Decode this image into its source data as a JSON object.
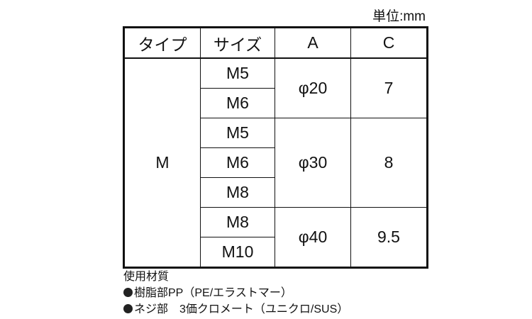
{
  "unit_label": "単位:mm",
  "table": {
    "headers": [
      "タイプ",
      "サイズ",
      "A",
      "C"
    ],
    "type": "M",
    "groups": [
      {
        "A": "φ20",
        "C": "7",
        "sizes": [
          "M5",
          "M6"
        ]
      },
      {
        "A": "φ30",
        "C": "8",
        "sizes": [
          "M5",
          "M6",
          "M8"
        ]
      },
      {
        "A": "φ40",
        "C": "9.5",
        "sizes": [
          "M8",
          "M10"
        ]
      }
    ]
  },
  "notes": {
    "title": "使用材質",
    "items": [
      "樹脂部PP（PE/エラストマー）",
      "ネジ部　3価クロメート（ユニクロ/SUS）"
    ]
  }
}
